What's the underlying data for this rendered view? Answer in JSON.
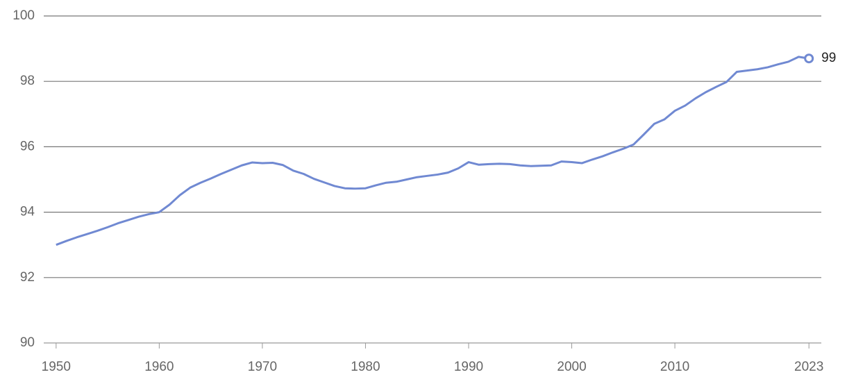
{
  "chart_data": {
    "type": "line",
    "x": [
      1950,
      1951,
      1952,
      1953,
      1954,
      1955,
      1956,
      1957,
      1958,
      1959,
      1960,
      1961,
      1962,
      1963,
      1964,
      1965,
      1966,
      1967,
      1968,
      1969,
      1970,
      1971,
      1972,
      1973,
      1974,
      1975,
      1976,
      1977,
      1978,
      1979,
      1980,
      1981,
      1982,
      1983,
      1984,
      1985,
      1986,
      1987,
      1988,
      1989,
      1990,
      1991,
      1992,
      1993,
      1994,
      1995,
      1996,
      1997,
      1998,
      1999,
      2000,
      2001,
      2002,
      2003,
      2004,
      2005,
      2006,
      2007,
      2008,
      2009,
      2010,
      2011,
      2012,
      2013,
      2014,
      2015,
      2016,
      2017,
      2018,
      2019,
      2020,
      2021,
      2022,
      2023
    ],
    "series": [
      {
        "color": "#7089d2",
        "values": [
          93.0,
          93.12,
          93.23,
          93.33,
          93.43,
          93.54,
          93.66,
          93.76,
          93.86,
          93.94,
          94.0,
          94.23,
          94.52,
          94.75,
          94.9,
          95.03,
          95.17,
          95.3,
          95.43,
          95.52,
          95.5,
          95.51,
          95.44,
          95.27,
          95.17,
          95.02,
          94.91,
          94.8,
          94.73,
          94.72,
          94.73,
          94.82,
          94.9,
          94.93,
          95.0,
          95.07,
          95.11,
          95.15,
          95.21,
          95.34,
          95.53,
          95.45,
          95.47,
          95.48,
          95.47,
          95.43,
          95.41,
          95.42,
          95.43,
          95.55,
          95.53,
          95.5,
          95.61,
          95.71,
          95.83,
          95.94,
          96.07,
          96.38,
          96.7,
          96.84,
          97.1,
          97.26,
          97.48,
          97.67,
          97.83,
          97.98,
          98.29,
          98.33,
          98.37,
          98.43,
          98.52,
          98.6,
          98.75,
          98.7
        ],
        "value_labels": [
          null,
          null,
          null,
          null,
          null,
          null,
          null,
          null,
          null,
          null,
          null,
          null,
          null,
          null,
          null,
          null,
          null,
          null,
          null,
          null,
          null,
          null,
          null,
          null,
          null,
          null,
          null,
          null,
          null,
          null,
          null,
          null,
          null,
          null,
          null,
          null,
          null,
          null,
          null,
          null,
          null,
          null,
          null,
          null,
          null,
          null,
          null,
          null,
          null,
          null,
          null,
          null,
          null,
          null,
          null,
          null,
          null,
          null,
          null,
          null,
          null,
          null,
          null,
          null,
          null,
          null,
          null,
          null,
          null,
          null,
          null,
          null,
          null,
          "99"
        ]
      }
    ],
    "xlim": [
      1948.8,
      2024.2
    ],
    "xticks": [
      1950,
      1960,
      1970,
      1980,
      1990,
      2000,
      2010,
      2023
    ],
    "ylim": [
      90,
      100
    ],
    "yticks": [
      90,
      92,
      94,
      96,
      98,
      100
    ],
    "grid": true
  }
}
